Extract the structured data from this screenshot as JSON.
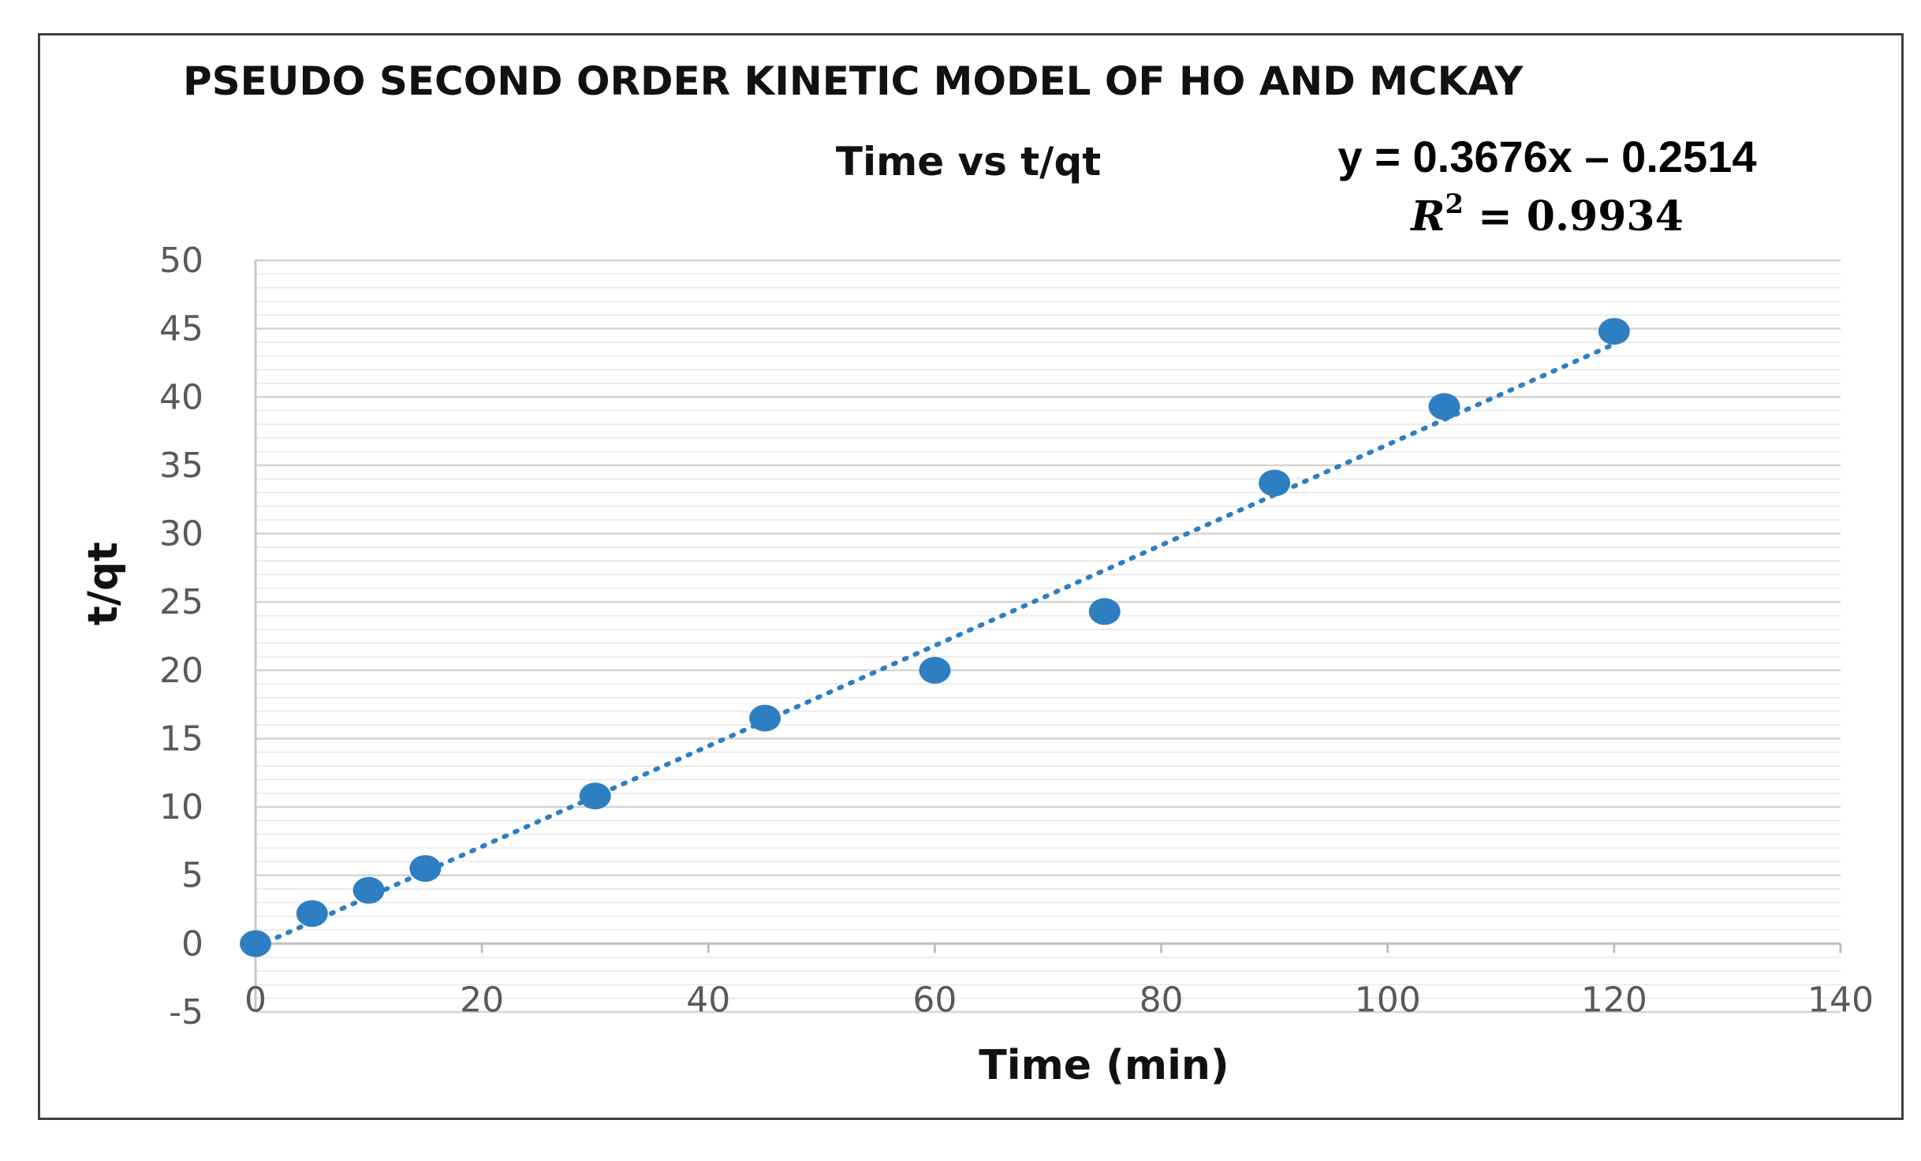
{
  "chart_data": {
    "type": "scatter",
    "title": "PSEUDO SECOND ORDER KINETIC MODEL OF HO AND MCKAY",
    "subtitle": "Time vs t/qt",
    "equation": "y = 0.3676x – 0.2514",
    "r2": {
      "label": "R",
      "sup": "2",
      "value": "= 0.9934"
    },
    "xlabel": "Time (min)",
    "ylabel": "t/qt",
    "xlim": [
      0,
      140
    ],
    "ylim": [
      -5,
      50
    ],
    "x_ticks": [
      0,
      20,
      40,
      60,
      80,
      100,
      120,
      140
    ],
    "y_ticks": [
      -5,
      0,
      5,
      10,
      15,
      20,
      25,
      30,
      35,
      40,
      45,
      50
    ],
    "grid": "horizontal",
    "series": [
      {
        "points": [
          {
            "x": 0,
            "y": 0
          },
          {
            "x": 5,
            "y": 2.2
          },
          {
            "x": 10,
            "y": 3.9
          },
          {
            "x": 15,
            "y": 5.5
          },
          {
            "x": 30,
            "y": 10.8
          },
          {
            "x": 45,
            "y": 16.5
          },
          {
            "x": 60,
            "y": 20
          },
          {
            "x": 75,
            "y": 24.3
          },
          {
            "x": 90,
            "y": 33.7
          },
          {
            "x": 105,
            "y": 39.3
          },
          {
            "x": 120,
            "y": 44.8
          }
        ],
        "color": "#2e7fc2"
      }
    ],
    "trendline": {
      "slope": 0.3676,
      "intercept": -0.2514,
      "x_range": [
        0,
        120
      ],
      "style": "dotted",
      "color": "#2e7fc2"
    }
  }
}
